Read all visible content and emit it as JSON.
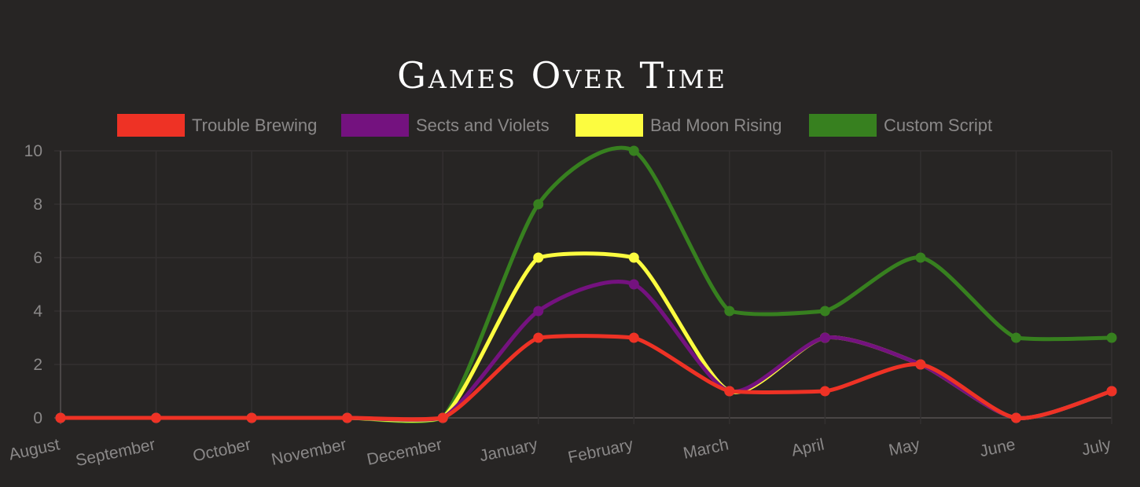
{
  "chart_data": {
    "type": "line",
    "title": "Games Over Time",
    "categories": [
      "August",
      "September",
      "October",
      "November",
      "December",
      "January",
      "February",
      "March",
      "April",
      "May",
      "June",
      "July"
    ],
    "series": [
      {
        "name": "Trouble Brewing",
        "color": "#ee3225",
        "values": [
          0,
          0,
          0,
          0,
          0,
          3,
          3,
          1,
          1,
          2,
          0,
          1
        ]
      },
      {
        "name": "Sects and Violets",
        "color": "#74127f",
        "values": [
          0,
          0,
          0,
          0,
          0,
          4,
          5,
          1,
          3,
          2,
          0,
          1
        ]
      },
      {
        "name": "Bad Moon Rising",
        "color": "#fcfc40",
        "values": [
          0,
          0,
          0,
          0,
          0,
          6,
          6,
          1,
          3,
          2,
          0,
          1
        ]
      },
      {
        "name": "Custom Script",
        "color": "#37801f",
        "values": [
          0,
          0,
          0,
          0,
          0,
          8,
          10,
          4,
          4,
          6,
          3,
          3
        ]
      }
    ],
    "yticks": [
      "0",
      "2",
      "4",
      "6",
      "8",
      "10"
    ],
    "ylim": [
      0,
      10
    ],
    "grid": true,
    "legend_position": "top"
  }
}
